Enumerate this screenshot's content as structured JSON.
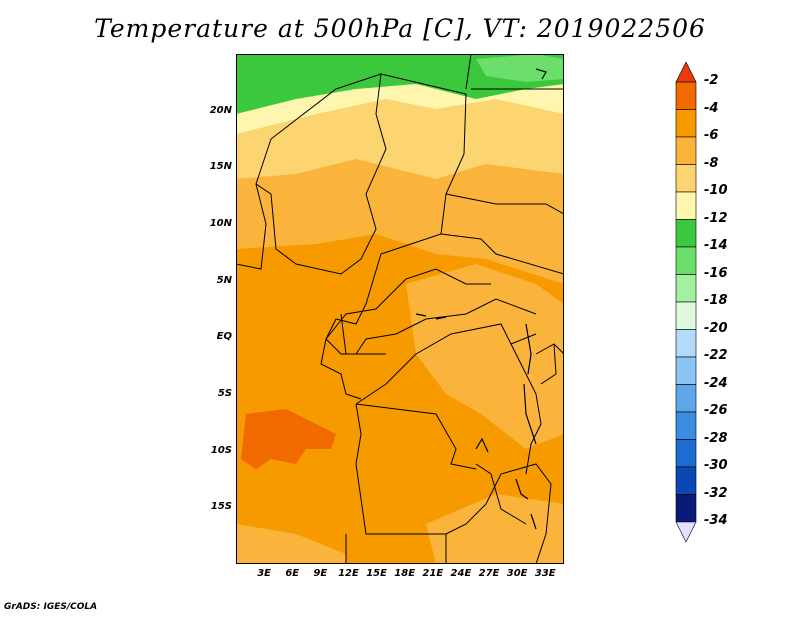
{
  "title": "Temperature at 500hPa [C], VT: 2019022506",
  "footer": "GrADS: IGES/COLA",
  "map": {
    "lon_range": [
      0,
      35
    ],
    "lat_range": [
      -20,
      25
    ],
    "lat_ticks": [
      {
        "label": "20N",
        "lat": 20
      },
      {
        "label": "15N",
        "lat": 15
      },
      {
        "label": "10N",
        "lat": 10
      },
      {
        "label": "5N",
        "lat": 5
      },
      {
        "label": "EQ",
        "lat": 0
      },
      {
        "label": "5S",
        "lat": -5
      },
      {
        "label": "10S",
        "lat": -10
      },
      {
        "label": "15S",
        "lat": -15
      }
    ],
    "lon_ticks": [
      {
        "label": "3E",
        "lon": 3
      },
      {
        "label": "6E",
        "lon": 6
      },
      {
        "label": "9E",
        "lon": 9
      },
      {
        "label": "12E",
        "lon": 12
      },
      {
        "label": "15E",
        "lon": 15
      },
      {
        "label": "18E",
        "lon": 18
      },
      {
        "label": "21E",
        "lon": 21
      },
      {
        "label": "24E",
        "lon": 24
      },
      {
        "label": "27E",
        "lon": 27
      },
      {
        "label": "30E",
        "lon": 30
      },
      {
        "label": "33E",
        "lon": 33
      }
    ]
  },
  "colorbar": {
    "labels": [
      "-2",
      "-4",
      "-6",
      "-8",
      "-10",
      "-12",
      "-14",
      "-16",
      "-18",
      "-20",
      "-22",
      "-24",
      "-26",
      "-28",
      "-30",
      "-32",
      "-34"
    ],
    "colors": [
      "#e83c10",
      "#f06a00",
      "#f69a00",
      "#fab43c",
      "#fcd470",
      "#fef6ae",
      "#3cc83c",
      "#6cde6c",
      "#a4f0a0",
      "#e0fae0",
      "#b4dafa",
      "#8cc4f2",
      "#5ea8ea",
      "#3c8ce2",
      "#1c6cd2",
      "#0c48b4",
      "#0a1a78",
      "#e4e0ff"
    ]
  }
}
